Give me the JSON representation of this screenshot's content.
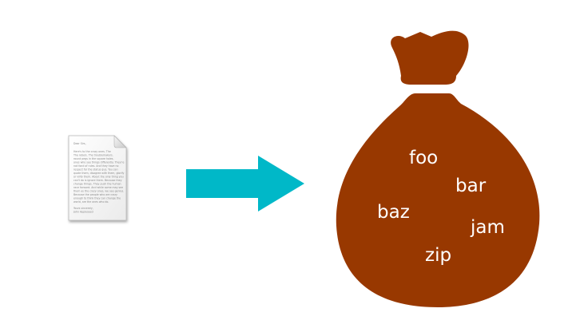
{
  "colors": {
    "background": "#ffffff",
    "arrow": "#00b8c8",
    "bag": "#983800",
    "bag_text": "#ffffff",
    "doc_fold": "#e4e4e4"
  },
  "document": {
    "icon": "text-document-icon",
    "lines": [
      "Dear Sirs,",
      "Here's to the crazy ones. The",
      "The rebels. The troublemakers.",
      "round pegs in the square holes.",
      "ones who see things differently. They're",
      "not fond of rules. And they have no",
      "respect for the status quo. You can",
      "quote them, disagree with them, glorify",
      "or vilify them. About the only thing you",
      "can't do is ignore them. Because they",
      "change things. They push the human",
      "race forward. And while some may see",
      "them as the crazy ones, we see genius.",
      "Because the people who are crazy",
      "enough to think they can change the",
      "world, are the ones who do.",
      "Yours sincerely,",
      "John Appleseed"
    ]
  },
  "arrow": {
    "icon": "right-arrow-icon"
  },
  "bag": {
    "icon": "money-bag-icon",
    "words": [
      "foo",
      "bar",
      "baz",
      "jam",
      "zip"
    ]
  }
}
